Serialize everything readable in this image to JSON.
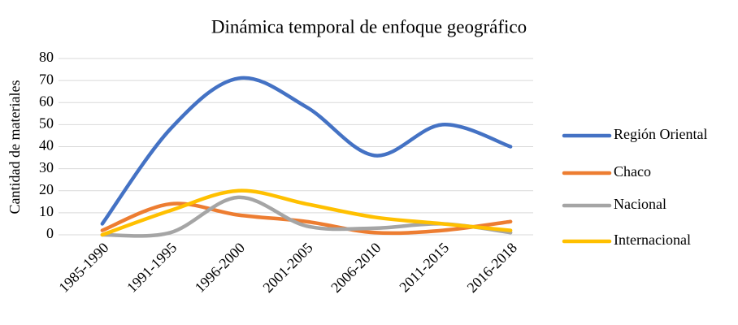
{
  "chart_data": {
    "type": "line",
    "title": "Dinámica temporal de enfoque geográfico",
    "y_label": "Cantidad de materiales",
    "categories": [
      "1985-1990",
      "1991-1995",
      "1996-2000",
      "2001-2005",
      "2006-2010",
      "2011-2015",
      "2016-2018"
    ],
    "series": [
      {
        "name": "Región Oriental",
        "color": "#4472c4",
        "values": [
          5,
          48,
          71,
          58,
          36,
          50,
          40
        ]
      },
      {
        "name": "Chaco",
        "color": "#ed7d31",
        "values": [
          2,
          14,
          9,
          6,
          1,
          2,
          6
        ]
      },
      {
        "name": "Nacional",
        "color": "#a5a5a5",
        "values": [
          0,
          1,
          17,
          4,
          3,
          5,
          1
        ]
      },
      {
        "name": "Internacional",
        "color": "#ffc000",
        "values": [
          0,
          11,
          20,
          14,
          8,
          5,
          2
        ]
      }
    ],
    "ylim": [
      0,
      80
    ],
    "yticks": [
      0,
      10,
      20,
      30,
      40,
      50,
      60,
      70,
      80
    ],
    "grid": true,
    "smooth": true,
    "legend": "right"
  }
}
